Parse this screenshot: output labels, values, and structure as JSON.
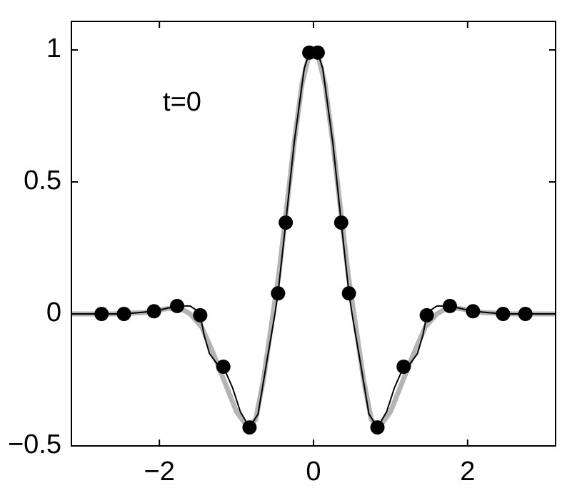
{
  "chart_data": {
    "type": "line",
    "annotation": "t=0",
    "xlim": [
      -3.1416,
      3.1416
    ],
    "ylim": [
      -0.5,
      1.1
    ],
    "xticks": [
      {
        "value": -2,
        "label": "−2"
      },
      0,
      2
    ],
    "yticks": [
      {
        "value": -0.5,
        "label": "−0.5"
      },
      0,
      0.5,
      1
    ],
    "grid": false,
    "series": [
      {
        "color": "#b4b4b4",
        "width": 7,
        "marker": false,
        "x": [
          -3.1416,
          -2.6,
          -2.2,
          -1.9,
          -1.75,
          -1.6,
          -1.45,
          -1.3,
          -1.15,
          -1.0,
          -0.85,
          -0.75,
          -0.65,
          -0.55,
          -0.45,
          -0.35,
          -0.25,
          -0.15,
          -0.05,
          0,
          0.05,
          0.15,
          0.25,
          0.35,
          0.45,
          0.55,
          0.65,
          0.75,
          0.85,
          1.0,
          1.15,
          1.3,
          1.45,
          1.6,
          1.75,
          1.9,
          2.2,
          2.6,
          3.1416
        ],
        "values": [
          0,
          0,
          0.005,
          0.02,
          0.025,
          0,
          -0.05,
          -0.15,
          -0.26,
          -0.37,
          -0.43,
          -0.4,
          -0.25,
          -0.05,
          0.15,
          0.4,
          0.65,
          0.87,
          0.99,
          1.0,
          0.99,
          0.87,
          0.65,
          0.4,
          0.15,
          -0.05,
          -0.25,
          -0.4,
          -0.43,
          -0.37,
          -0.26,
          -0.15,
          -0.05,
          0,
          0.025,
          0.02,
          0.005,
          0,
          0
        ]
      },
      {
        "color": "#000000",
        "width": 2,
        "marker": false,
        "x": [
          -3.1416,
          -2.75,
          -2.46,
          -2.07,
          -1.77,
          -1.6,
          -1.5,
          -1.47,
          -1.42,
          -1.35,
          -1.25,
          -1.17,
          -1.05,
          -0.95,
          -0.83,
          -0.72,
          -0.6,
          -0.5,
          -0.46,
          -0.36,
          -0.25,
          -0.12,
          -0.055,
          0,
          0.055,
          0.12,
          0.25,
          0.36,
          0.46,
          0.5,
          0.6,
          0.72,
          0.83,
          0.95,
          1.05,
          1.17,
          1.25,
          1.35,
          1.42,
          1.47,
          1.5,
          1.6,
          1.77,
          2.07,
          2.46,
          2.75,
          3.1416
        ],
        "values": [
          0,
          0,
          0,
          0.01,
          0.03,
          0.03,
          0.01,
          -0.005,
          -0.08,
          -0.15,
          -0.19,
          -0.2,
          -0.28,
          -0.37,
          -0.43,
          -0.38,
          -0.17,
          0,
          0.078,
          0.346,
          0.65,
          0.93,
          0.99,
          1.0,
          0.99,
          0.93,
          0.65,
          0.346,
          0.078,
          0,
          -0.17,
          -0.38,
          -0.43,
          -0.37,
          -0.28,
          -0.2,
          -0.19,
          -0.15,
          -0.08,
          -0.005,
          0.01,
          0.03,
          0.03,
          0.01,
          0,
          0,
          0
        ]
      },
      {
        "color": "#000000",
        "width": 0,
        "marker": true,
        "x": [
          -2.75,
          -2.46,
          -2.07,
          -1.77,
          -1.47,
          -1.17,
          -0.83,
          -0.46,
          -0.36,
          -0.055,
          0.055,
          0.36,
          0.46,
          0.83,
          1.17,
          1.47,
          1.77,
          2.07,
          2.46,
          2.75
        ],
        "values": [
          0,
          0,
          0.01,
          0.03,
          -0.005,
          -0.2,
          -0.43,
          0.078,
          0.346,
          0.99,
          0.99,
          0.346,
          0.078,
          -0.43,
          -0.2,
          -0.005,
          0.03,
          0.01,
          0,
          0
        ]
      }
    ]
  }
}
